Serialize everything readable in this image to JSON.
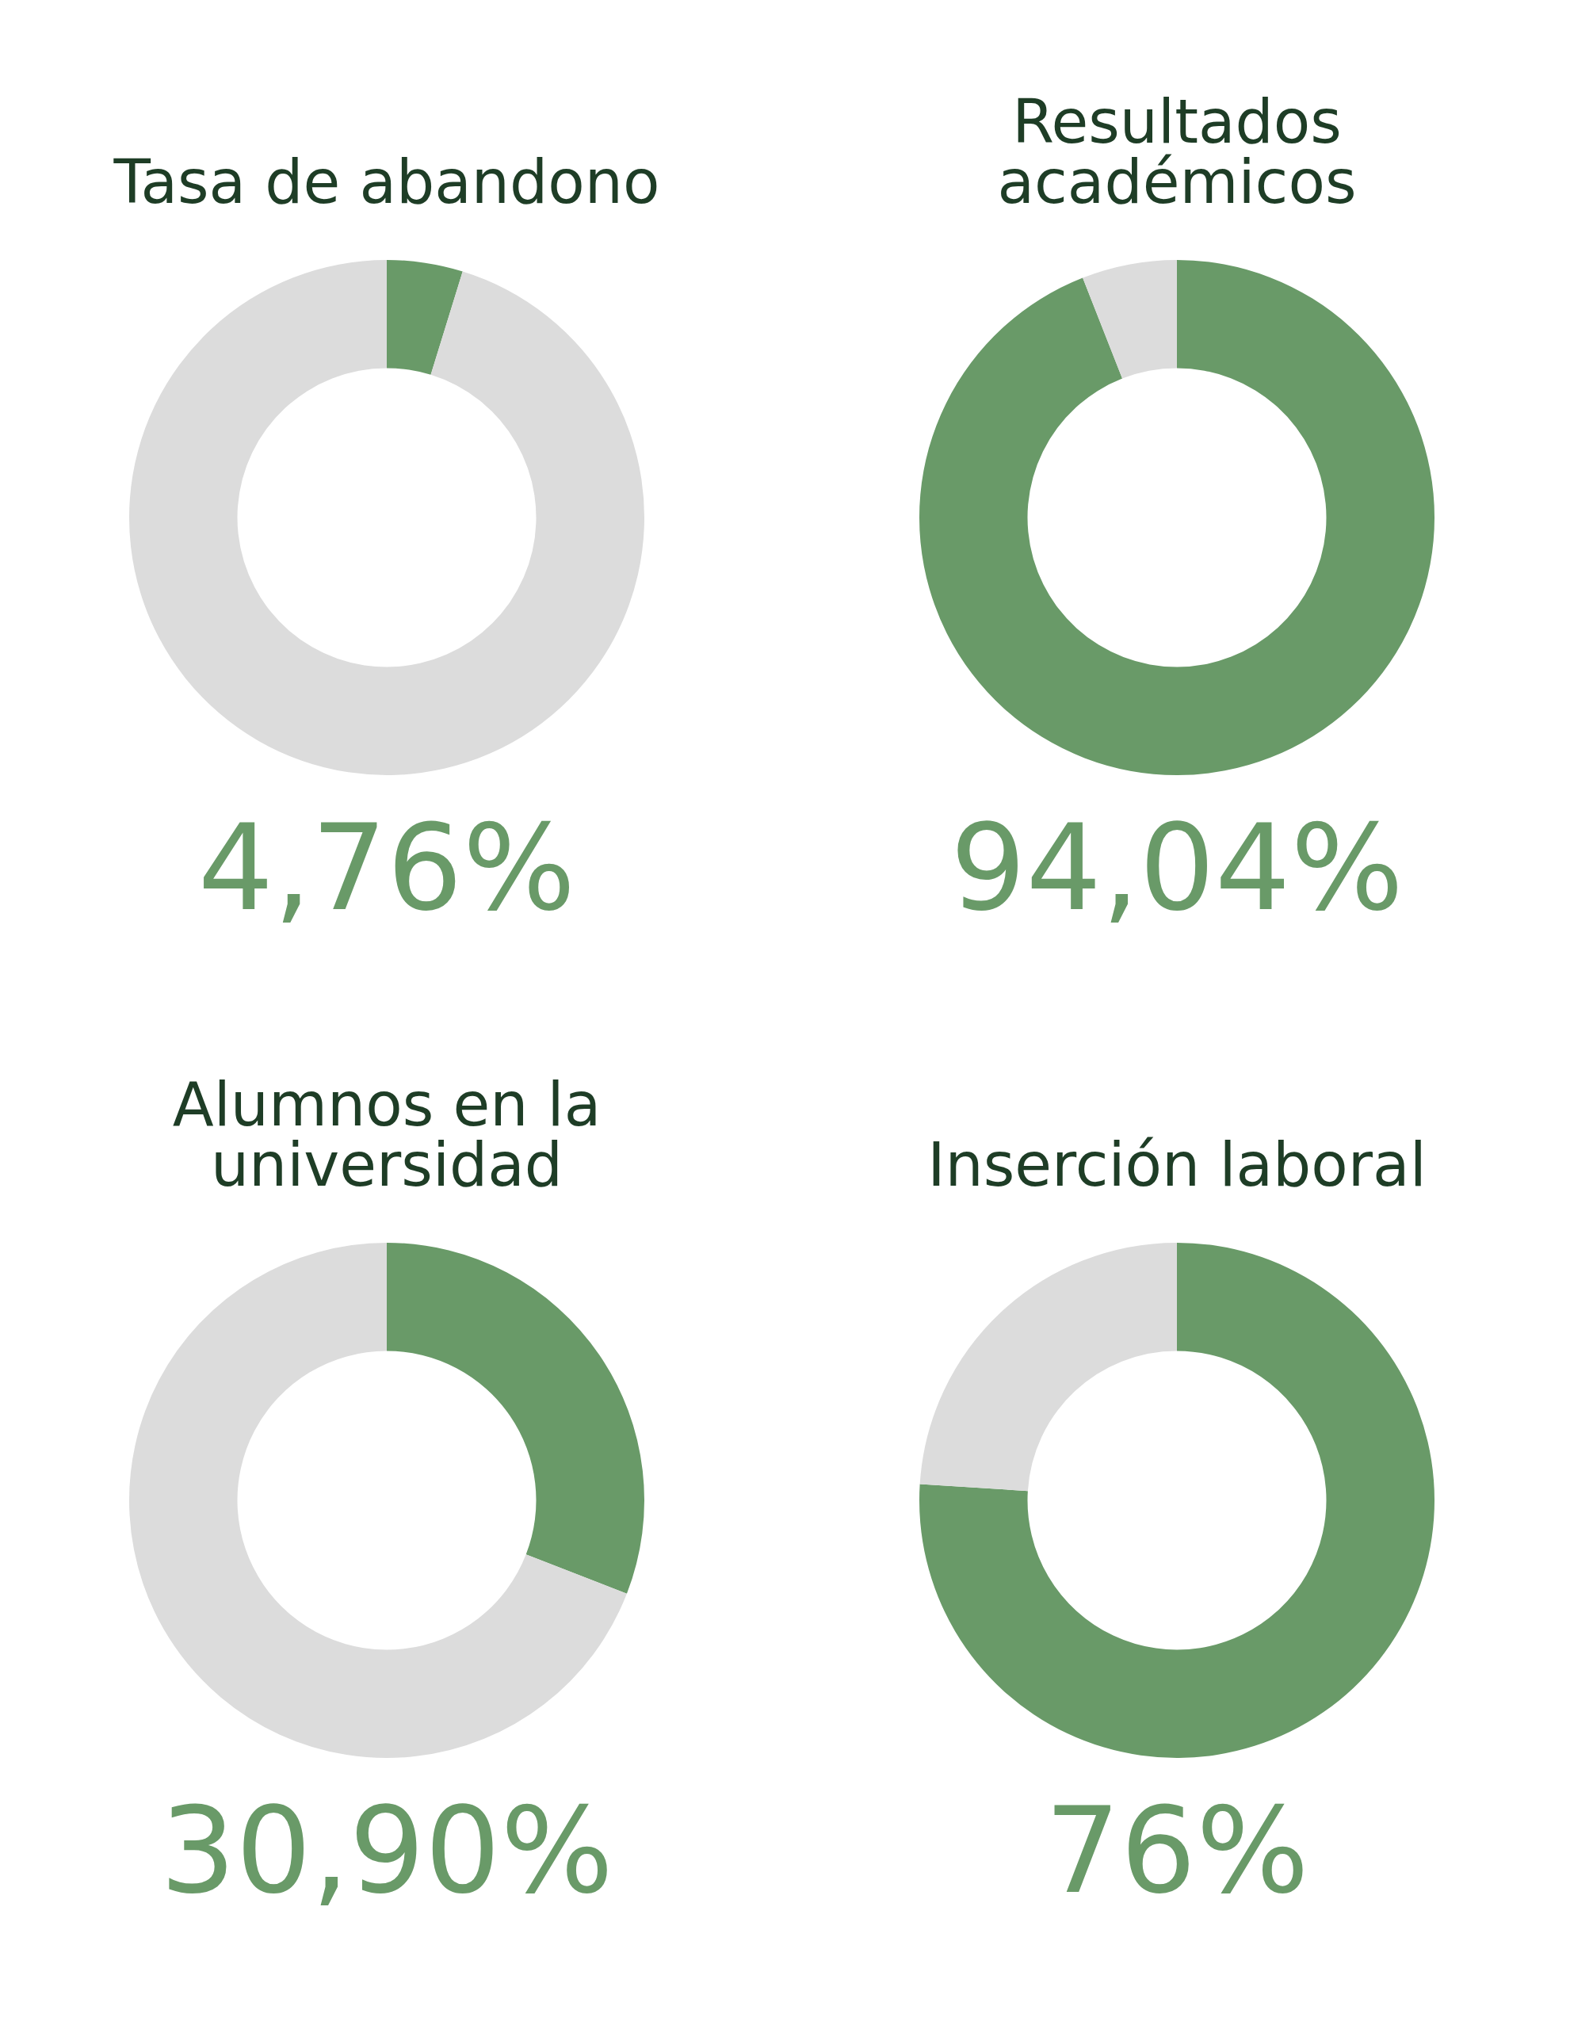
{
  "chart_data": [
    {
      "type": "donut",
      "title": "Tasa de abandono",
      "categories": [
        null,
        null
      ],
      "values": [
        4.76,
        95.24
      ],
      "colors": [
        "#699a68",
        "#dcdcdc"
      ],
      "annotations": [
        "4,76%"
      ],
      "legend": false
    },
    {
      "type": "donut",
      "title": "Resultados académicos",
      "categories": [
        null,
        null
      ],
      "values": [
        94.04,
        5.96
      ],
      "colors": [
        "#699a68",
        "#dcdcdc"
      ],
      "annotations": [
        "94,04%"
      ],
      "legend": false
    },
    {
      "type": "donut",
      "title": "Alumnos en la universidad",
      "categories": [
        null,
        null
      ],
      "values": [
        30.9,
        69.1
      ],
      "colors": [
        "#699a68",
        "#dcdcdc"
      ],
      "annotations": [
        "30,90%"
      ],
      "legend": false
    },
    {
      "type": "donut",
      "title": "Inserción laboral",
      "categories": [
        null,
        null
      ],
      "values": [
        76,
        24
      ],
      "colors": [
        "#699a68",
        "#dcdcdc"
      ],
      "annotations": [
        "76%"
      ],
      "legend": false
    }
  ]
}
